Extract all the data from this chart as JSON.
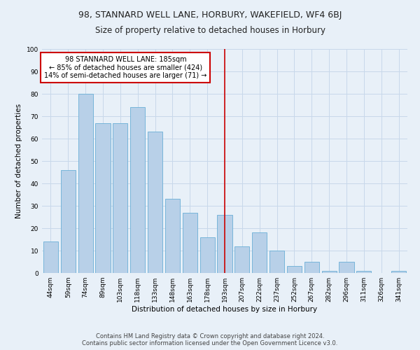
{
  "title": "98, STANNARD WELL LANE, HORBURY, WAKEFIELD, WF4 6BJ",
  "subtitle": "Size of property relative to detached houses in Horbury",
  "xlabel": "Distribution of detached houses by size in Horbury",
  "ylabel": "Number of detached properties",
  "categories": [
    "44sqm",
    "59sqm",
    "74sqm",
    "89sqm",
    "103sqm",
    "118sqm",
    "133sqm",
    "148sqm",
    "163sqm",
    "178sqm",
    "193sqm",
    "207sqm",
    "222sqm",
    "237sqm",
    "252sqm",
    "267sqm",
    "282sqm",
    "296sqm",
    "311sqm",
    "326sqm",
    "341sqm"
  ],
  "values": [
    14,
    46,
    80,
    67,
    67,
    74,
    63,
    33,
    27,
    16,
    26,
    12,
    18,
    10,
    3,
    5,
    1,
    5,
    1,
    0,
    1
  ],
  "bar_color": "#b8d0e8",
  "bar_edge_color": "#6aaed6",
  "vline_x": 10.0,
  "annotation_text": "98 STANNARD WELL LANE: 185sqm\n← 85% of detached houses are smaller (424)\n14% of semi-detached houses are larger (71) →",
  "annotation_box_color": "#ffffff",
  "annotation_box_edge_color": "#cc0000",
  "vline_color": "#cc0000",
  "ylim": [
    0,
    100
  ],
  "yticks": [
    0,
    10,
    20,
    30,
    40,
    50,
    60,
    70,
    80,
    90,
    100
  ],
  "grid_color": "#c8d8ea",
  "background_color": "#e8f0f8",
  "footer_line1": "Contains HM Land Registry data © Crown copyright and database right 2024.",
  "footer_line2": "Contains public sector information licensed under the Open Government Licence v3.0.",
  "title_fontsize": 9,
  "subtitle_fontsize": 8.5,
  "axis_label_fontsize": 7.5,
  "tick_fontsize": 6.5,
  "annotation_fontsize": 7,
  "footer_fontsize": 6
}
